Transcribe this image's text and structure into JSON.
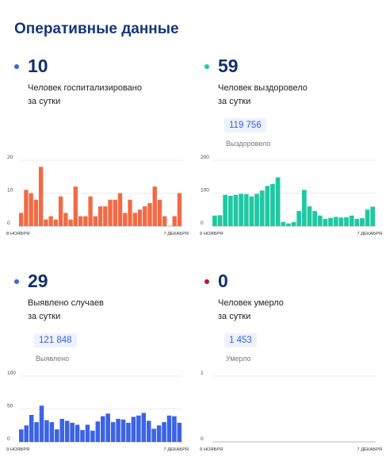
{
  "page_title": "Оперативные данные",
  "colors": {
    "title": "#15367c",
    "orange": "#f26a44",
    "teal": "#1fc8a2",
    "blue": "#3b63e3",
    "red": "#c8102e",
    "badge_text": "#3763d8"
  },
  "panels": [
    {
      "number": "10",
      "desc1": "Человек госпитализировано",
      "desc2": "за сутки",
      "dot_color": "#3b63e3",
      "badge_value": "",
      "badge_label": ""
    },
    {
      "number": "59",
      "desc1": "Человек выздоровело",
      "desc2": "за сутки",
      "dot_color": "#1fc8a2",
      "badge_value": "119 756",
      "badge_label": "Выздоровело"
    },
    {
      "number": "29",
      "desc1": "Выявлено случаев",
      "desc2": "за сутки",
      "dot_color": "#3b63e3",
      "badge_value": "121 848",
      "badge_label": "Выявлено"
    },
    {
      "number": "0",
      "desc1": "Человек умерло",
      "desc2": "за сутки",
      "dot_color": "#c8102e",
      "badge_value": "1 453",
      "badge_label": "Умерло"
    }
  ],
  "chart_data": [
    {
      "type": "bar",
      "color": "#f26a44",
      "ymax": 20,
      "yticks": [
        0,
        10,
        20
      ],
      "xlabel_start": "8 НОЯБРЯ",
      "xlabel_end": "7 ДЕКАБРЯ",
      "values": [
        4,
        11,
        10,
        8,
        18,
        2,
        3,
        2,
        9,
        4,
        2,
        12,
        3,
        3,
        9,
        3,
        6,
        6,
        8,
        8,
        10,
        4,
        8,
        4,
        5,
        6,
        7,
        12,
        8,
        3,
        0,
        3,
        10
      ]
    },
    {
      "type": "bar",
      "color": "#1fc8a2",
      "ymax": 200,
      "yticks": [
        0,
        100,
        200
      ],
      "xlabel_start": "9 НОЯБРЯ",
      "xlabel_end": "7 ДЕКАБРЯ",
      "values": [
        32,
        33,
        95,
        92,
        95,
        98,
        97,
        90,
        98,
        108,
        122,
        128,
        148,
        12,
        8,
        12,
        46,
        110,
        60,
        46,
        32,
        22,
        25,
        28,
        26,
        27,
        32,
        22,
        24,
        50,
        59
      ]
    },
    {
      "type": "bar",
      "color": "#3b63e3",
      "ymax": 100,
      "yticks": [
        0,
        50,
        100
      ],
      "xlabel_start": "9 НОЯБРЯ",
      "xlabel_end": "7 ДЕКАБРЯ",
      "values": [
        19,
        25,
        41,
        30,
        55,
        33,
        30,
        19,
        35,
        32,
        29,
        26,
        18,
        26,
        17,
        31,
        39,
        43,
        30,
        35,
        34,
        29,
        38,
        40,
        44,
        32,
        20,
        25,
        30,
        40,
        39,
        29
      ]
    },
    {
      "type": "bar",
      "color": "#3b63e3",
      "ymax": 1,
      "yticks": [
        0,
        1
      ],
      "xlabel_start": "9 НОЯБРЯ",
      "xlabel_end": "7 ДЕКАБРЯ",
      "values": []
    }
  ]
}
